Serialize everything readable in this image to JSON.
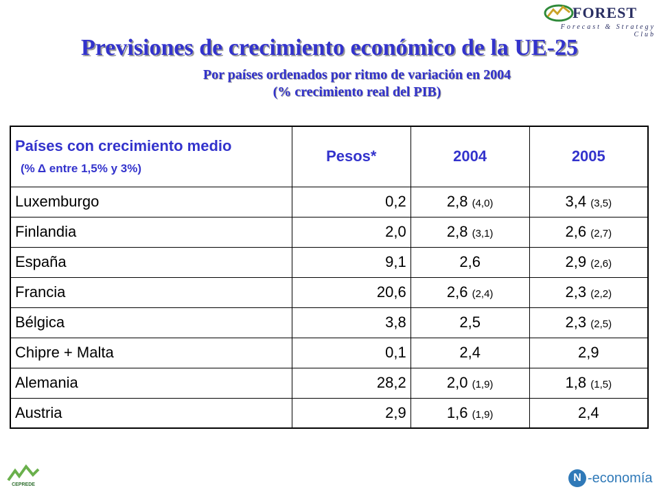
{
  "logos": {
    "forest_name": "FOREST",
    "forest_tagline": "Forecast & Strategy Club",
    "cepade": "CEPREDE",
    "n_letter": "N",
    "n_text": "-economía"
  },
  "title": "Previsiones de crecimiento económico de la UE-25",
  "subtitle_line1": "Por países ordenados por ritmo de variación en 2004",
  "subtitle_line2": "(% crecimiento real del PIB)",
  "table": {
    "header_country": "Países con crecimiento medio",
    "header_country_note": "(% Δ entre 1,5% y 3%)",
    "header_weights": "Pesos*",
    "header_2004": "2004",
    "header_2005": "2005",
    "rows": [
      {
        "country": "Luxemburgo",
        "weight": "0,2",
        "y2004": "2,8",
        "y2004_prev": "(4,0)",
        "y2005": "3,4",
        "y2005_prev": "(3,5)"
      },
      {
        "country": "Finlandia",
        "weight": "2,0",
        "y2004": "2,8",
        "y2004_prev": "(3,1)",
        "y2005": "2,6",
        "y2005_prev": "(2,7)"
      },
      {
        "country": "España",
        "weight": "9,1",
        "y2004": "2,6",
        "y2004_prev": "",
        "y2005": "2,9",
        "y2005_prev": "(2,6)"
      },
      {
        "country": "Francia",
        "weight": "20,6",
        "y2004": "2,6",
        "y2004_prev": "(2,4)",
        "y2005": "2,3",
        "y2005_prev": "(2,2)"
      },
      {
        "country": "Bélgica",
        "weight": "3,8",
        "y2004": "2,5",
        "y2004_prev": "",
        "y2005": "2,3",
        "y2005_prev": "(2,5)"
      },
      {
        "country": "Chipre + Malta",
        "weight": "0,1",
        "y2004": "2,4",
        "y2004_prev": "",
        "y2005": "2,9",
        "y2005_prev": ""
      },
      {
        "country": "Alemania",
        "weight": "28,2",
        "y2004": "2,0",
        "y2004_prev": "(1,9)",
        "y2005": "1,8",
        "y2005_prev": "(1,5)"
      },
      {
        "country": "Austria",
        "weight": "2,9",
        "y2004": "1,6",
        "y2004_prev": "(1,9)",
        "y2005": "2,4",
        "y2005_prev": ""
      }
    ]
  },
  "colors": {
    "title": "#3333cc",
    "header_text": "#3333cc",
    "forest_brand": "#2a2f63",
    "cepade_green": "#2f6f2f",
    "n_blue": "#2f79b8"
  }
}
